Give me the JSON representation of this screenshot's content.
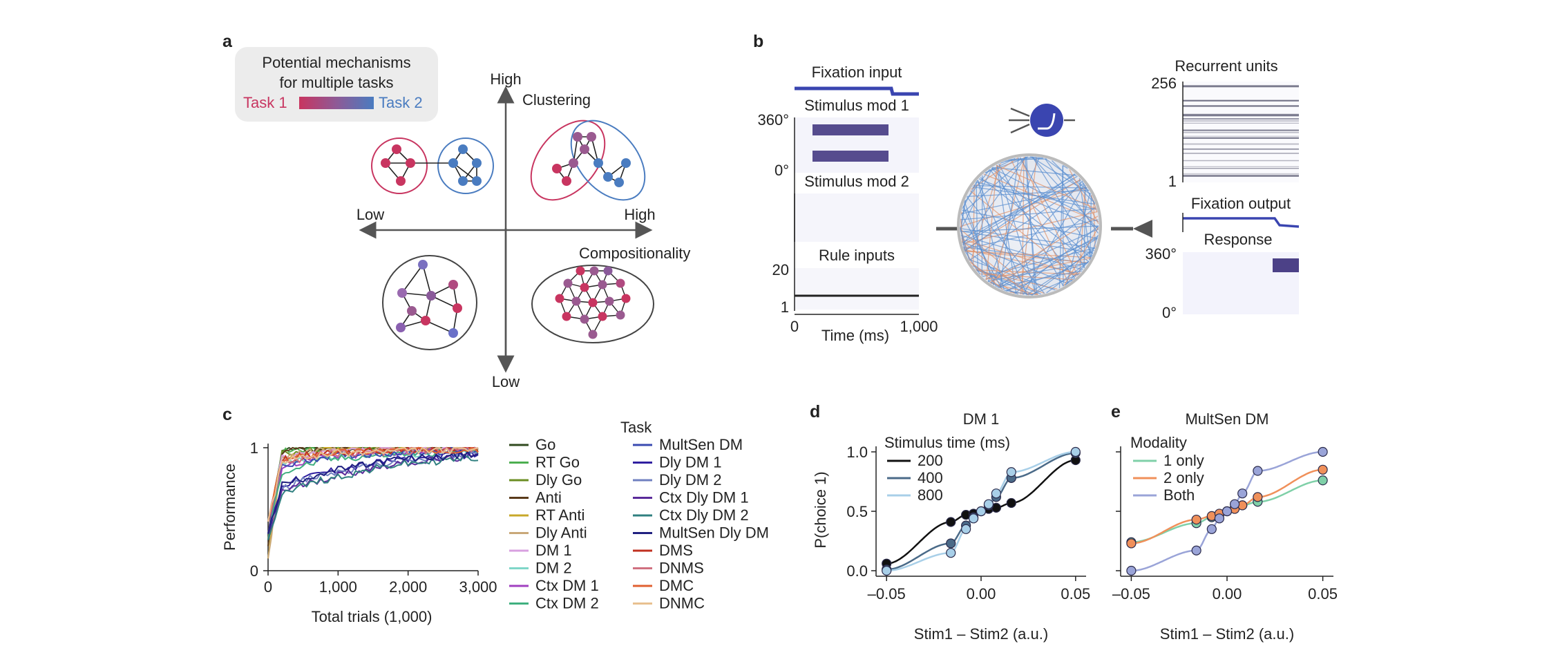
{
  "panels": {
    "a": "a",
    "b": "b",
    "c": "c",
    "d": "d",
    "e": "e"
  },
  "panel_a": {
    "legend_title_1": "Potential mechanisms",
    "legend_title_2": "for multiple tasks",
    "task1": "Task 1",
    "task2": "Task 2",
    "axis_high_top": "High",
    "axis_low_bottom": "Low",
    "axis_low_left": "Low",
    "axis_high_right": "High",
    "clustering": "Clustering",
    "compositionality": "Compositionality",
    "colors": {
      "task1": "#c83560",
      "task2": "#4a7cc0",
      "mixed": "#9a5a90",
      "gray": "#555555"
    }
  },
  "panel_b": {
    "fixation_input": "Fixation input",
    "stimulus_mod1": "Stimulus mod 1",
    "stimulus_mod2": "Stimulus mod 2",
    "rule_inputs": "Rule inputs",
    "recurrent_units": "Recurrent units",
    "fixation_output": "Fixation output",
    "response": "Response",
    "y_360": "360°",
    "y_0": "0°",
    "rule_y_top": "20",
    "rule_y_bottom": "1",
    "x_start": "0",
    "x_end": "1,000",
    "xlabel": "Time (ms)",
    "units_top": "256",
    "units_bottom": "1",
    "resp_y_top": "360°",
    "resp_y_bottom": "0°",
    "colors": {
      "signal": "#3a45b0",
      "network_blue": "#5b8fd0",
      "network_orange": "#e0926a"
    }
  },
  "chart_data": [
    {
      "id": "c",
      "type": "line",
      "xlabel": "Total trials (1,000)",
      "ylabel": "Performance",
      "xlim": [
        0,
        3000
      ],
      "ylim": [
        0,
        1
      ],
      "xticks": [
        "0",
        "1,000",
        "2,000",
        "3,000"
      ],
      "yticks": [
        "0",
        "1"
      ],
      "legend_title": "Task",
      "series": [
        {
          "name": "Go",
          "color": "#2f4a1e",
          "values": [
            0.3,
            1.0,
            1.0,
            1.0,
            1.0
          ]
        },
        {
          "name": "RT Go",
          "color": "#4caf50",
          "values": [
            0.25,
            0.98,
            1.0,
            1.0,
            1.0
          ]
        },
        {
          "name": "Dly Go",
          "color": "#6b8e23",
          "values": [
            0.3,
            0.95,
            1.0,
            1.0,
            1.0
          ]
        },
        {
          "name": "Anti",
          "color": "#5a3a1a",
          "values": [
            0.2,
            0.97,
            1.0,
            1.0,
            1.0
          ]
        },
        {
          "name": "RT Anti",
          "color": "#c8a82a",
          "values": [
            0.1,
            0.9,
            0.98,
            1.0,
            1.0
          ]
        },
        {
          "name": "Dly Anti",
          "color": "#c9a878",
          "values": [
            0.1,
            0.92,
            0.99,
            1.0,
            1.0
          ]
        },
        {
          "name": "DM 1",
          "color": "#d8a0e0",
          "values": [
            0.4,
            0.92,
            0.96,
            0.98,
            1.0
          ]
        },
        {
          "name": "DM 2",
          "color": "#7fd6c8",
          "values": [
            0.4,
            0.88,
            0.93,
            0.95,
            0.96
          ]
        },
        {
          "name": "Ctx DM 1",
          "color": "#a040c0",
          "values": [
            0.3,
            0.85,
            0.92,
            0.96,
            0.98
          ]
        },
        {
          "name": "Ctx DM 2",
          "color": "#40b080",
          "values": [
            0.3,
            0.8,
            0.9,
            0.95,
            0.97
          ]
        },
        {
          "name": "MultSen DM",
          "color": "#3a4ab0",
          "values": [
            0.4,
            0.85,
            0.93,
            0.96,
            0.98
          ]
        },
        {
          "name": "Dly DM 1",
          "color": "#3020a0",
          "values": [
            0.3,
            0.7,
            0.8,
            0.9,
            0.95
          ]
        },
        {
          "name": "Dly DM 2",
          "color": "#7080c0",
          "values": [
            0.3,
            0.68,
            0.78,
            0.88,
            0.94
          ]
        },
        {
          "name": "Ctx Dly DM 1",
          "color": "#5a2a9a",
          "values": [
            0.25,
            0.65,
            0.75,
            0.87,
            0.93
          ]
        },
        {
          "name": "Ctx Dly DM 2",
          "color": "#308080",
          "values": [
            0.25,
            0.64,
            0.74,
            0.86,
            0.92
          ]
        },
        {
          "name": "MultSen Dly DM",
          "color": "#202080",
          "values": [
            0.3,
            0.7,
            0.8,
            0.9,
            0.95
          ]
        },
        {
          "name": "DMS",
          "color": "#c03020",
          "values": [
            0.4,
            0.9,
            0.96,
            0.98,
            0.99
          ]
        },
        {
          "name": "DNMS",
          "color": "#d07080",
          "values": [
            0.4,
            0.88,
            0.95,
            0.97,
            0.99
          ]
        },
        {
          "name": "DMC",
          "color": "#e06030",
          "values": [
            0.4,
            0.9,
            0.96,
            0.98,
            0.99
          ]
        },
        {
          "name": "DNMC",
          "color": "#e8c090",
          "values": [
            0.4,
            0.89,
            0.95,
            0.97,
            0.99
          ]
        }
      ],
      "x": [
        0,
        200,
        800,
        1800,
        3000
      ]
    },
    {
      "id": "d",
      "type": "scatter",
      "title": "DM 1",
      "xlabel": "Stim1 – Stim2 (a.u.)",
      "ylabel": "P(choice 1)",
      "xlim": [
        -0.05,
        0.05
      ],
      "ylim": [
        0,
        1
      ],
      "xticks": [
        "–0.05",
        "0.00",
        "0.05"
      ],
      "yticks": [
        "0.0",
        "0.5",
        "1.0"
      ],
      "legend_title": "Stimulus time (ms)",
      "x": [
        -0.05,
        -0.016,
        -0.008,
        -0.004,
        0.0,
        0.004,
        0.008,
        0.016,
        0.05
      ],
      "series": [
        {
          "name": "200",
          "color": "#111111",
          "values": [
            0.06,
            0.41,
            0.47,
            0.48,
            0.5,
            0.52,
            0.53,
            0.57,
            0.93
          ]
        },
        {
          "name": "400",
          "color": "#4a6a88",
          "values": [
            0.01,
            0.23,
            0.38,
            0.45,
            0.5,
            0.55,
            0.62,
            0.78,
            0.99
          ]
        },
        {
          "name": "800",
          "color": "#a8cfe8",
          "values": [
            0.0,
            0.15,
            0.35,
            0.44,
            0.5,
            0.56,
            0.65,
            0.83,
            1.0
          ]
        }
      ]
    },
    {
      "id": "e",
      "type": "scatter",
      "title": "MultSen DM",
      "xlabel": "Stim1 – Stim2 (a.u.)",
      "xlim": [
        -0.05,
        0.05
      ],
      "ylim": [
        0,
        1
      ],
      "xticks": [
        "–0.05",
        "0.00",
        "0.05"
      ],
      "legend_title": "Modality",
      "x": [
        -0.05,
        -0.016,
        -0.008,
        -0.004,
        0.0,
        0.004,
        0.008,
        0.016,
        0.05
      ],
      "series": [
        {
          "name": "1 only",
          "color": "#7fd0a8",
          "values": [
            0.24,
            0.4,
            0.45,
            0.47,
            0.5,
            0.53,
            0.55,
            0.58,
            0.76
          ]
        },
        {
          "name": "2 only",
          "color": "#f0905a",
          "values": [
            0.23,
            0.43,
            0.46,
            0.48,
            0.5,
            0.52,
            0.55,
            0.62,
            0.85
          ]
        },
        {
          "name": "Both",
          "color": "#9aa4d8",
          "values": [
            0.0,
            0.17,
            0.35,
            0.44,
            0.5,
            0.56,
            0.65,
            0.84,
            1.0
          ]
        }
      ]
    }
  ]
}
